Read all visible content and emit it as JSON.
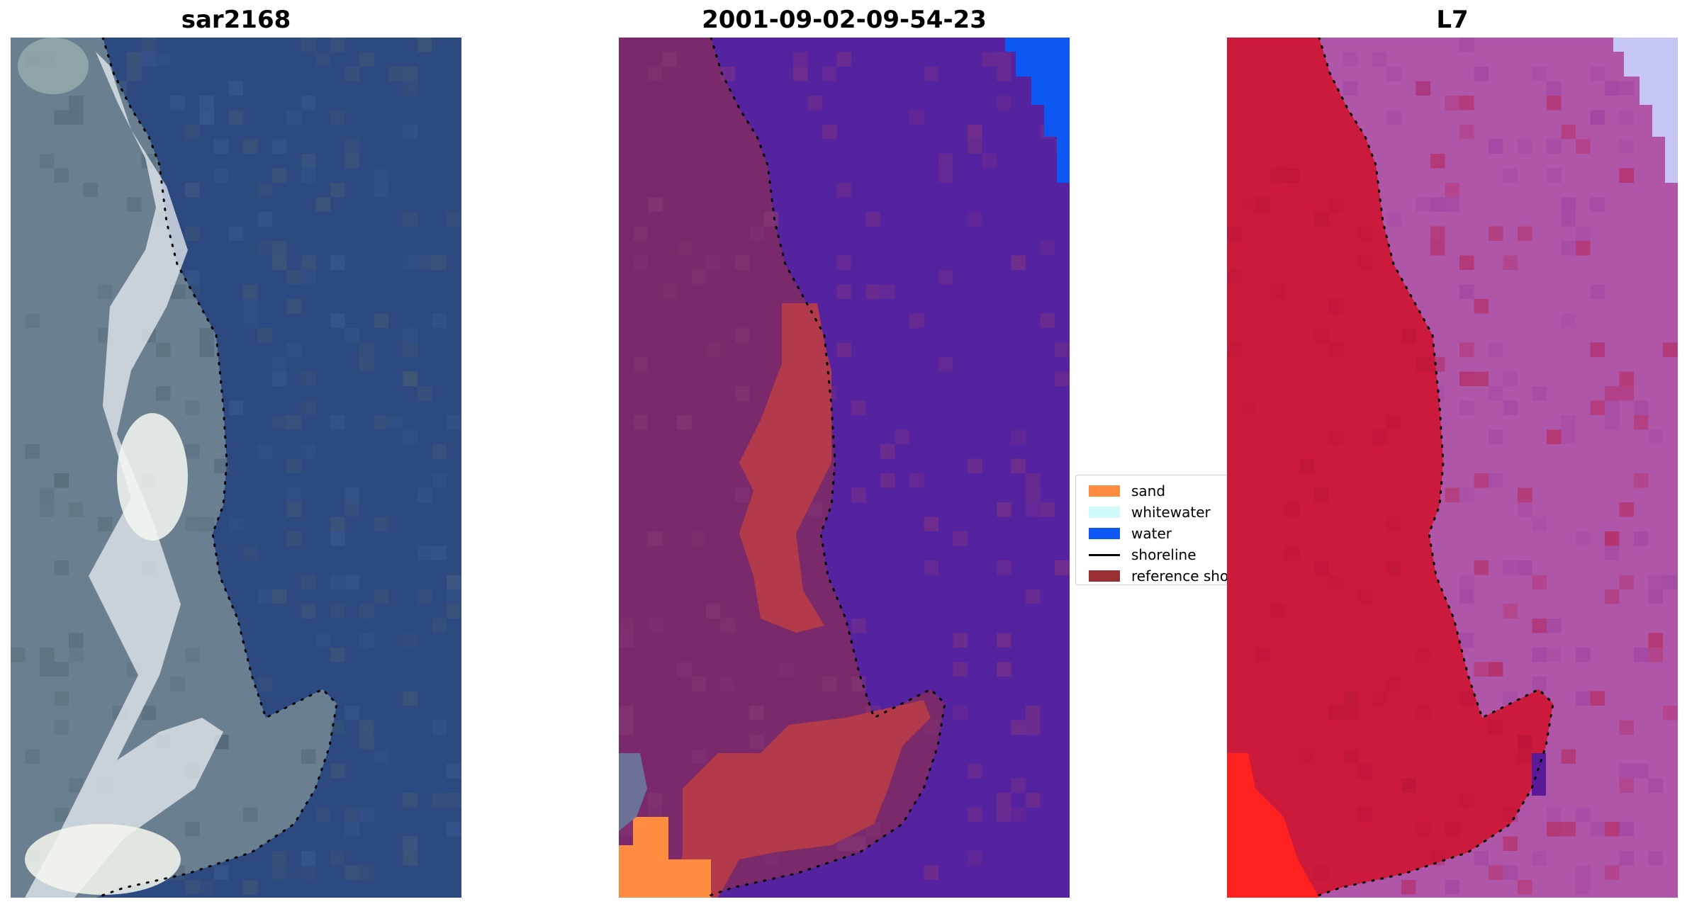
{
  "panels": [
    {
      "title": "sar2168",
      "view": "rgb",
      "image_icon": "satellite-rgb-image"
    },
    {
      "title": "2001-09-02-09-54-23",
      "view": "classified",
      "image_icon": "classified-image"
    },
    {
      "title": "L7",
      "view": "false-color",
      "image_icon": "satellite-false-color-image"
    }
  ],
  "legend": {
    "items": [
      {
        "label": "sand",
        "color": "#ff8c3f",
        "kind": "patch"
      },
      {
        "label": "whitewater",
        "color": "#cffcfb",
        "kind": "patch"
      },
      {
        "label": "water",
        "color": "#0d58f2",
        "kind": "patch"
      },
      {
        "label": "shoreline",
        "color": "#000000",
        "kind": "line"
      },
      {
        "label": "reference shoreline buffer",
        "color": "#9b2f36",
        "kind": "patch"
      }
    ]
  },
  "colors": {
    "rgb_water": "#2c4a80",
    "rgb_land": "#6a8090",
    "rgb_surf": "#e8eef0",
    "class_water": "#5522a0",
    "class_land": "#7a2a6a",
    "class_buffer": "#b23a4a",
    "fc_land": "#cc1a3c",
    "fc_water": "#b056a8",
    "fc_bright": "#ff2020",
    "shoreline_dots": "#000000"
  }
}
